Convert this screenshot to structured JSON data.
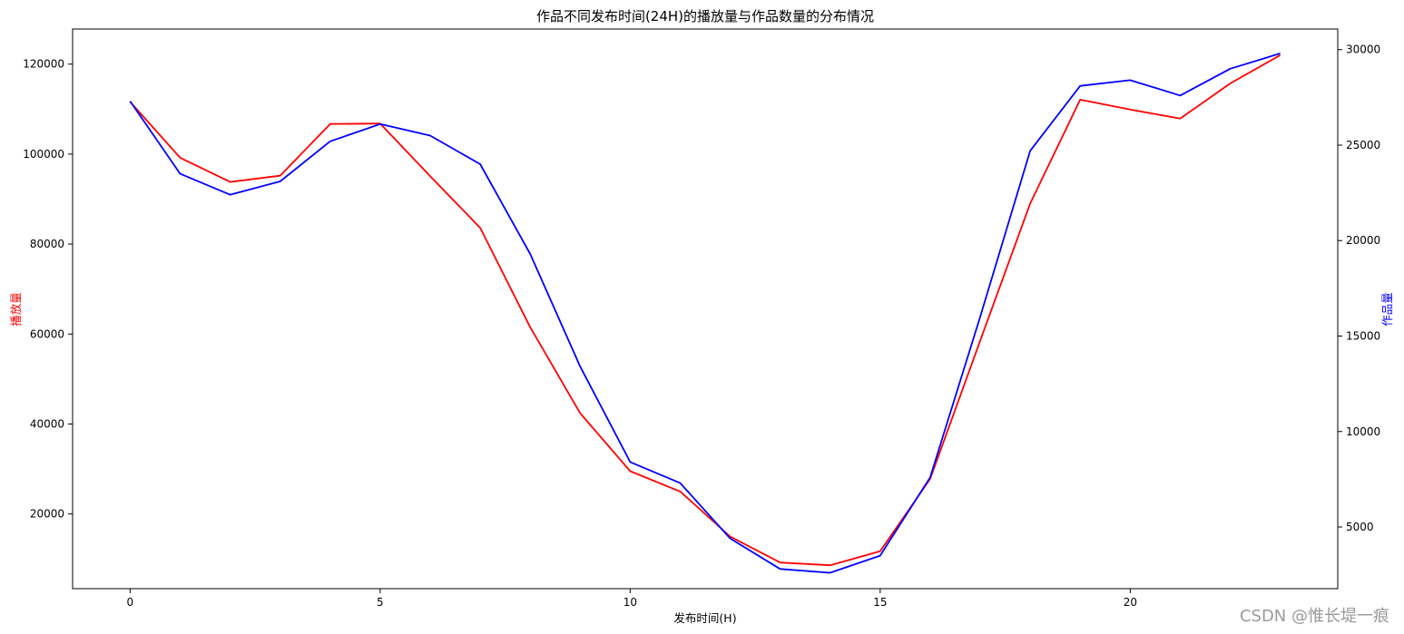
{
  "chart_data": {
    "type": "line",
    "title": "作品不同发布时间(24H)的播放量与作品数量的分布情况",
    "xlabel": "发布时间(H)",
    "ylabel_left": "播放量",
    "ylabel_right": "作品量",
    "xlim": [
      -1.15,
      24.15
    ],
    "ylim_left": [
      3400,
      127800
    ],
    "ylim_right": [
      1770,
      31080
    ],
    "x_ticks": [
      0,
      5,
      10,
      15,
      20
    ],
    "y_ticks_left": [
      20000,
      40000,
      60000,
      80000,
      100000,
      120000
    ],
    "y_ticks_right": [
      5000,
      10000,
      15000,
      20000,
      25000,
      30000
    ],
    "x": [
      0,
      1,
      2,
      3,
      4,
      5,
      6,
      7,
      8,
      9,
      10,
      11,
      12,
      13,
      14,
      15,
      16,
      17,
      18,
      19,
      20,
      21,
      22,
      23
    ],
    "series": [
      {
        "name": "",
        "axis": "left",
        "color": "#ff0000",
        "values": [
          111600,
          99200,
          93800,
          95200,
          106700,
          106800,
          95100,
          83600,
          61500,
          42400,
          29500,
          25000,
          15000,
          9200,
          8600,
          11700,
          27800,
          58500,
          89000,
          112100,
          109900,
          107900,
          115700,
          122000
        ]
      },
      {
        "name": "",
        "axis": "right",
        "color": "#0000ff",
        "values": [
          27300,
          23500,
          22400,
          23100,
          25200,
          26100,
          25500,
          24000,
          19300,
          13400,
          8400,
          7300,
          4400,
          2800,
          2600,
          3500,
          7600,
          16000,
          24700,
          28100,
          28400,
          27600,
          29000,
          29800
        ]
      }
    ],
    "grid": false,
    "legend": "none"
  },
  "watermark": "CSDN @惟长堤一痕"
}
